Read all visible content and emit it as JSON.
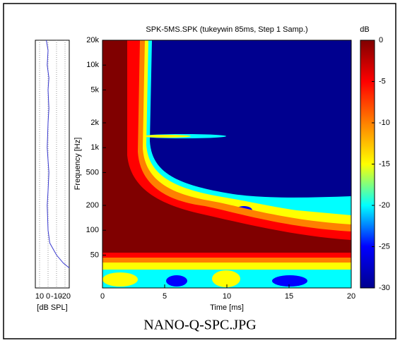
{
  "chart_data": [
    {
      "type": "heatmap",
      "title": "SPK-5MS.SPK (tukeywin 85ms, Step 1 Samp.)",
      "x_label": "Time [ms]",
      "y_label": "Frequency [Hz]",
      "xlim": [
        0,
        20
      ],
      "xticks": [
        0,
        5,
        10,
        15,
        20
      ],
      "ylim": [
        20,
        20000
      ],
      "y_scale": "log",
      "yticks": [
        50,
        100,
        200,
        500,
        {
          "value": 1000,
          "label": "1k"
        },
        {
          "value": 2000,
          "label": "2k"
        },
        {
          "value": 5000,
          "label": "5k"
        },
        {
          "value": 10000,
          "label": "10k"
        },
        {
          "value": 20000,
          "label": "20k"
        }
      ],
      "colorbar_label": "dB",
      "clim": [
        -30,
        0
      ],
      "cticks": [
        0,
        -5,
        -10,
        -15,
        -20,
        -25,
        -30
      ],
      "colormap": [
        "#800000",
        "#ff0000",
        "#ff8000",
        "#ffff00",
        "#00ffff",
        "#0000ff",
        "#00008f"
      ],
      "caption": "NANO-Q-SPC.JPG"
    },
    {
      "type": "line",
      "x_label": "[dB SPL]",
      "xlim": [
        15,
        -25
      ],
      "xticks": [
        10,
        0,
        -10,
        -20
      ],
      "ylim": [
        20,
        20000
      ],
      "y_scale": "log",
      "y": [
        20000,
        15000,
        10000,
        7000,
        5000,
        3000,
        2000,
        1000,
        700,
        500,
        300,
        200,
        100,
        70,
        50,
        40,
        35
      ],
      "values": [
        2,
        0,
        1,
        -1,
        0,
        -1,
        0,
        1,
        0,
        -1,
        0,
        1,
        0,
        -2,
        -10,
        -18,
        -25
      ],
      "color": "#3a3ad0",
      "grid": true
    }
  ]
}
